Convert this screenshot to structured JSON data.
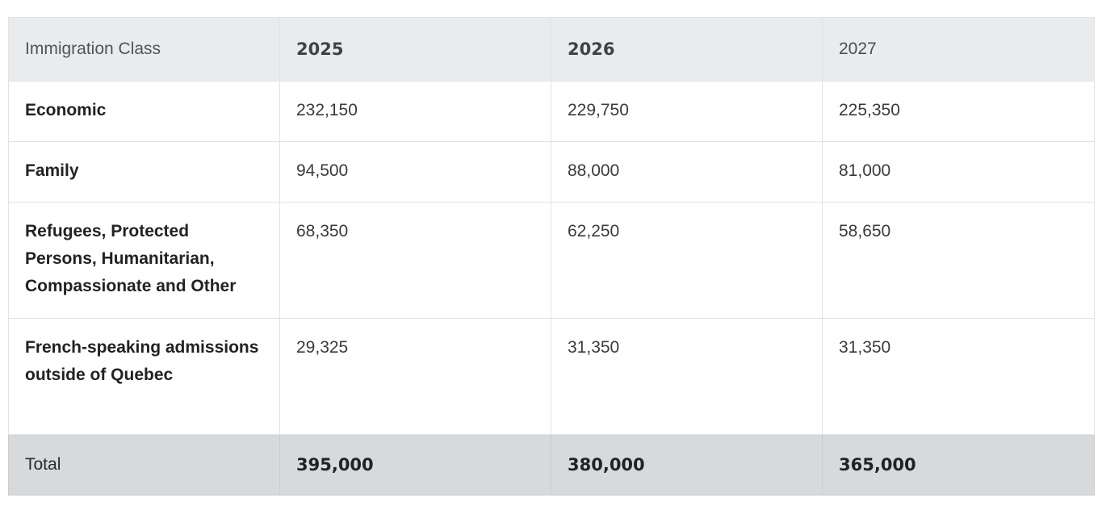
{
  "table": {
    "headers": [
      "Immigration Class",
      "2025",
      "2026",
      "2027"
    ],
    "rows": [
      {
        "label": "Economic",
        "values": [
          "232,150",
          "229,750",
          "225,350"
        ]
      },
      {
        "label": "Family",
        "values": [
          "94,500",
          "88,000",
          "81,000"
        ]
      },
      {
        "label": "Refugees, Protected Persons, Humanitarian, Compassionate and Other",
        "values": [
          "68,350",
          "62,250",
          "58,650"
        ]
      },
      {
        "label": "French-speaking admissions outside of Quebec",
        "values": [
          "29,325",
          "31,350",
          "31,350"
        ]
      }
    ],
    "total": {
      "label": "Total",
      "values": [
        "395,000",
        "380,000",
        "365,000"
      ]
    }
  },
  "colors": {
    "header_bg": "#e9ebed",
    "total_bg": "#d7d9db",
    "border": "#e1e3e5"
  }
}
